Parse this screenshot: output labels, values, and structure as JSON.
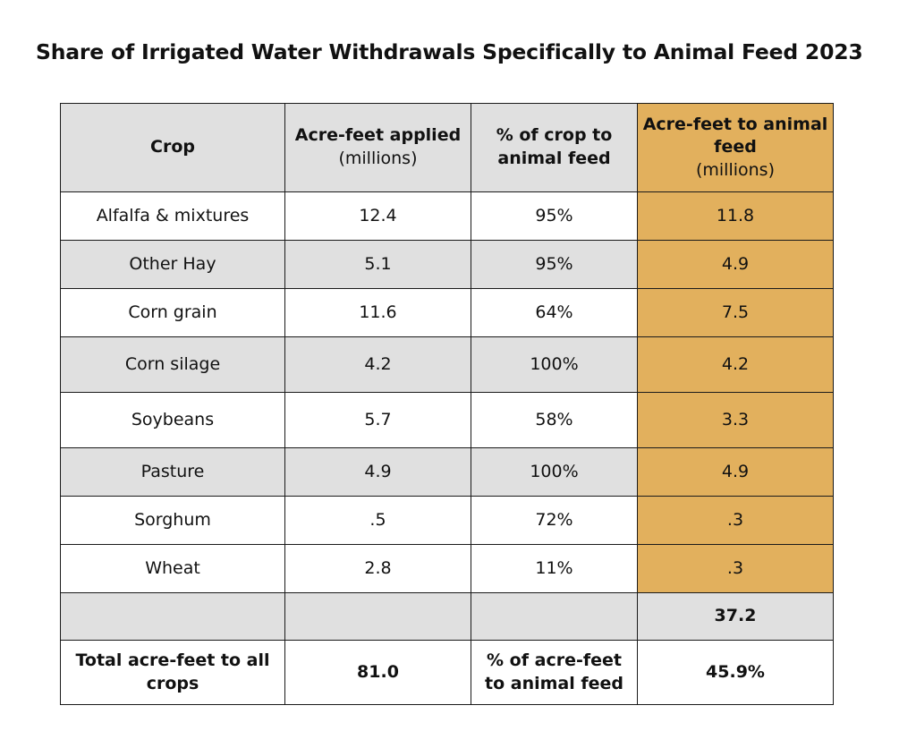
{
  "title": "Share of Irrigated Water Withdrawals Specifically to Animal Feed 2023",
  "colors": {
    "header_bg": "#e0e0e0",
    "shaded_row_bg": "#e0e0e0",
    "highlight_column": "#e2b05d",
    "border": "#1a1a1a"
  },
  "headers": {
    "crop": "Crop",
    "applied_title": "Acre-feet applied",
    "applied_unit": "(millions)",
    "pct_title": "% of crop to animal feed",
    "feed_title": "Acre-feet to animal feed",
    "feed_unit": "(millions)"
  },
  "rows": [
    {
      "crop": "Alfalfa & mixtures",
      "applied": "12.4",
      "pct": "95%",
      "feed": "11.8"
    },
    {
      "crop": "Other Hay",
      "applied": "5.1",
      "pct": "95%",
      "feed": "4.9"
    },
    {
      "crop": "Corn grain",
      "applied": "11.6",
      "pct": "64%",
      "feed": "7.5"
    },
    {
      "crop": "Corn silage",
      "applied": "4.2",
      "pct": "100%",
      "feed": "4.2"
    },
    {
      "crop": "Soybeans",
      "applied": "5.7",
      "pct": "58%",
      "feed": "3.3"
    },
    {
      "crop": "Pasture",
      "applied": "4.9",
      "pct": "100%",
      "feed": "4.9"
    },
    {
      "crop": "Sorghum",
      "applied": ".5",
      "pct": "72%",
      "feed": ".3"
    },
    {
      "crop": "Wheat",
      "applied": "2.8",
      "pct": "11%",
      "feed": ".3"
    }
  ],
  "subtotal": {
    "feed": "37.2"
  },
  "total": {
    "label": "Total acre-feet to all crops",
    "applied": "81.0",
    "pct_label": "% of acre-feet to animal feed",
    "feed": "45.9%"
  },
  "chart_data": {
    "type": "table",
    "title": "Share of Irrigated Water Withdrawals Specifically to Animal Feed 2023",
    "columns": [
      "Crop",
      "Acre-feet applied (millions)",
      "% of crop to animal feed",
      "Acre-feet to animal feed (millions)"
    ],
    "categories": [
      "Alfalfa & mixtures",
      "Other Hay",
      "Corn grain",
      "Corn silage",
      "Soybeans",
      "Pasture",
      "Sorghum",
      "Wheat"
    ],
    "series": [
      {
        "name": "Acre-feet applied (millions)",
        "values": [
          12.4,
          5.1,
          11.6,
          4.2,
          5.7,
          4.9,
          0.5,
          2.8
        ]
      },
      {
        "name": "% of crop to animal feed",
        "values": [
          95,
          95,
          64,
          100,
          58,
          100,
          72,
          11
        ]
      },
      {
        "name": "Acre-feet to animal feed (millions)",
        "values": [
          11.8,
          4.9,
          7.5,
          4.2,
          3.3,
          4.9,
          0.3,
          0.3
        ]
      }
    ],
    "feed_total": 37.2,
    "all_crops_total": 81.0,
    "share_to_animal_feed_pct": 45.9
  }
}
